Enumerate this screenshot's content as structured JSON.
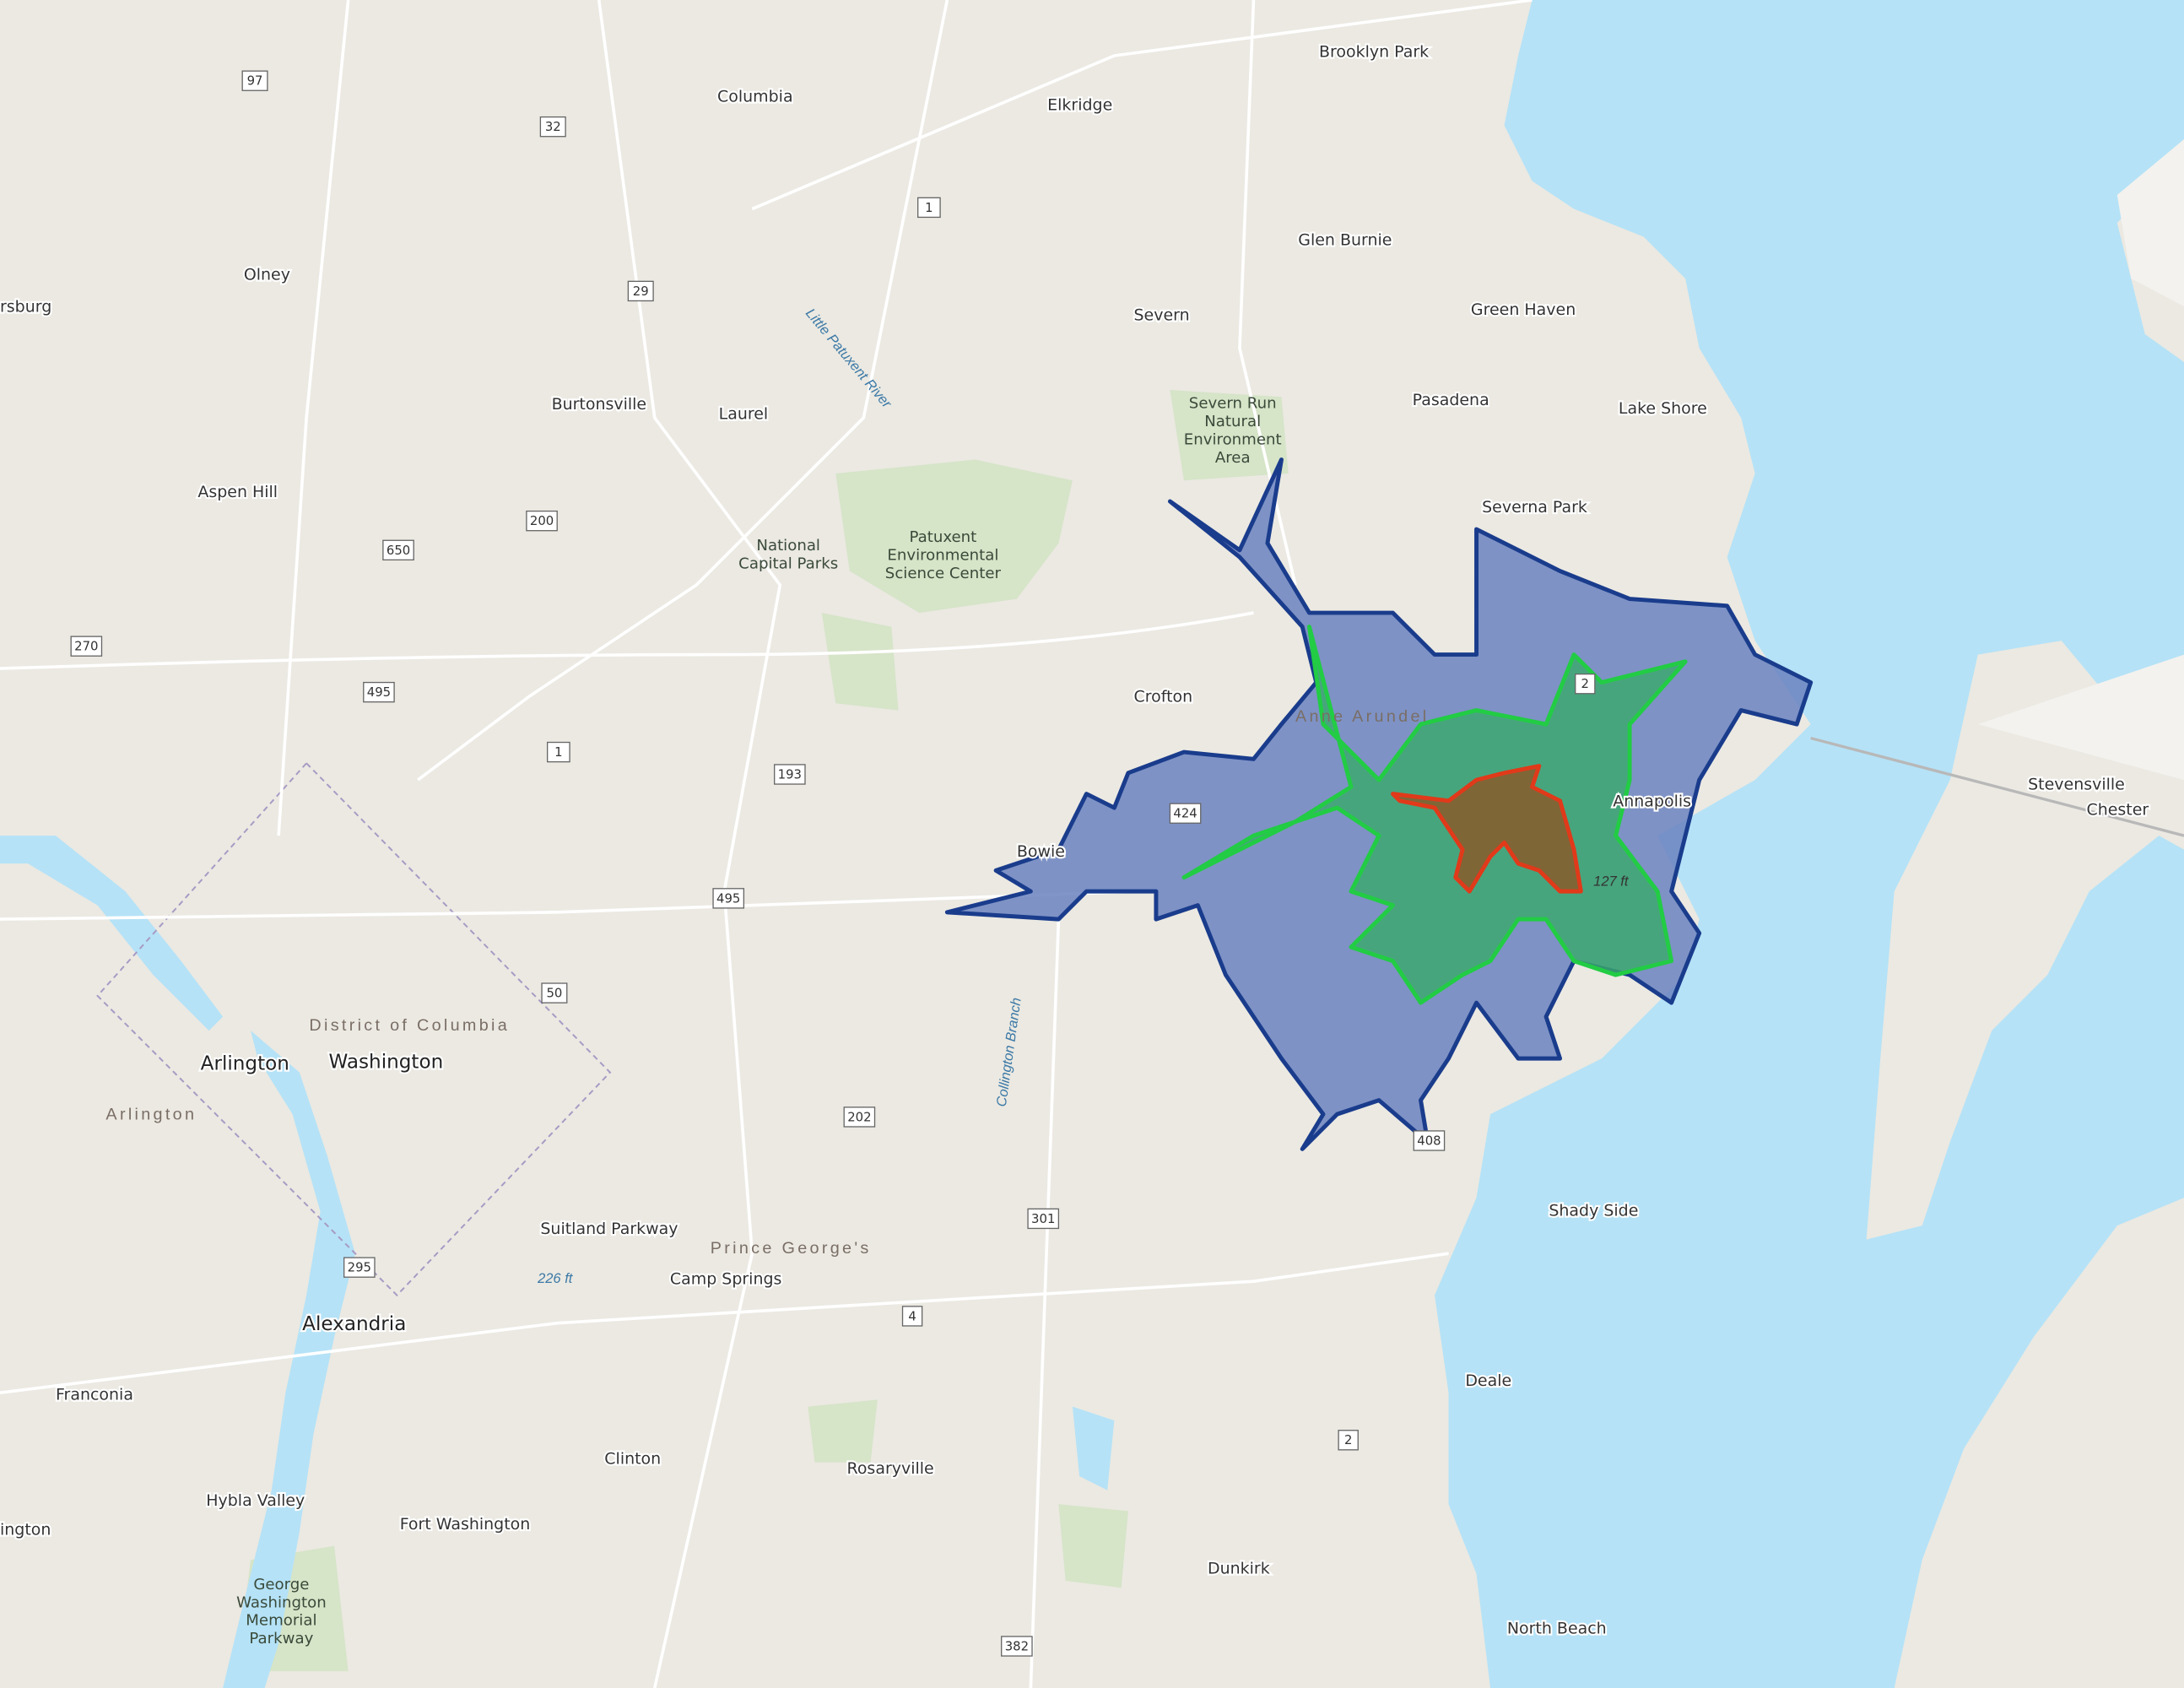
{
  "map": {
    "basemap": "topographic",
    "colors": {
      "land": "#ebe9e2",
      "water": "#b5e2f7",
      "park": "#d6e4c8",
      "zone_outer_fill": "#6b82bf",
      "zone_outer_stroke": "#1a3c8c",
      "zone_middle_fill": "#3aaa6a",
      "zone_middle_stroke": "#22cc44",
      "zone_inner_fill": "#8a5a2a",
      "zone_inner_stroke": "#e03a1a"
    },
    "places": [
      "Brooklyn Park",
      "Columbia",
      "Elkridge",
      "Glen Burnie",
      "Olney",
      "Severn",
      "Green Haven",
      "rsburg",
      "Burtonsville",
      "Laurel",
      "Pasadena",
      "Lake Shore",
      "Aspen Hill",
      "Severna Park",
      "Crofton",
      "Annapolis",
      "Bowie",
      "Stevensville",
      "Chester",
      "Arlington",
      "Washington",
      "Alexandria",
      "Franconia",
      "Shady Side",
      "Suitland Parkway",
      "Camp Springs",
      "Deale",
      "Clinton",
      "Rosaryville",
      "Hybla Valley",
      "Fort Washington",
      "Dunkirk",
      "North Beach",
      "ington"
    ],
    "regions": [
      "Anne Arundel",
      "Prince George's",
      "District of Columbia",
      "Arlington"
    ],
    "parks": [
      "Severn Run Natural Environment Area",
      "National Capital Parks",
      "Patuxent Environmental Science Center",
      "George Washington Memorial Parkway"
    ],
    "water_labels": [
      "Little Patuxent River",
      "Collington Branch"
    ],
    "elevations": [
      "226 ft",
      "127 ft"
    ],
    "route_shields": [
      "97",
      "32",
      "1",
      "29",
      "200",
      "650",
      "270",
      "495",
      "1",
      "193",
      "495",
      "50",
      "202",
      "301",
      "295",
      "4",
      "2",
      "382",
      "408",
      "424",
      "2"
    ]
  }
}
